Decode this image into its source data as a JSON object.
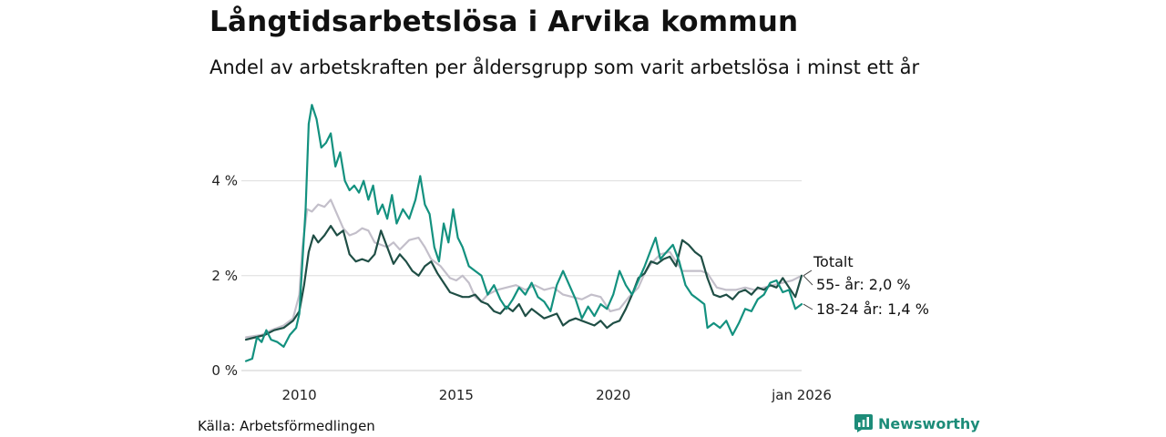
{
  "title": "Långtidsarbetslösa i Arvika kommun",
  "subtitle": "Andel av arbetskraften per åldersgrupp som varit arbetslösa i minst ett år",
  "source": "Källa: Arbetsförmedlingen",
  "brand": {
    "name": "Newsworthy",
    "icon": "bar-chart-logo-icon"
  },
  "colors": {
    "total": "#c3bfca",
    "age_55": "#1f4e45",
    "age_18_24": "#13917f",
    "grid": "#dddddd"
  },
  "chart_data": {
    "type": "line",
    "title": "Långtidsarbetslösa i Arvika kommun",
    "subtitle": "Andel av arbetskraften per åldersgrupp som varit arbetslösa i minst ett år",
    "x_range": [
      2008.3,
      2026.0
    ],
    "ylim": [
      0,
      5.7
    ],
    "y_ticks": [
      0,
      2,
      4
    ],
    "y_tick_labels": [
      "0 %",
      "2 %",
      "4 %"
    ],
    "x_ticks": [
      2010,
      2015,
      2020,
      2026.0
    ],
    "x_tick_labels": [
      "2010",
      "2015",
      "2020",
      "jan 2026"
    ],
    "grid": true,
    "series": [
      {
        "name": "Totalt",
        "label": "Totalt",
        "color": "#c3bfca",
        "points": [
          [
            2008.3,
            0.7
          ],
          [
            2008.8,
            0.75
          ],
          [
            2009.1,
            0.85
          ],
          [
            2009.5,
            0.95
          ],
          [
            2009.8,
            1.1
          ],
          [
            2010.0,
            1.6
          ],
          [
            2010.1,
            2.6
          ],
          [
            2010.25,
            3.4
          ],
          [
            2010.4,
            3.35
          ],
          [
            2010.6,
            3.5
          ],
          [
            2010.8,
            3.45
          ],
          [
            2011.0,
            3.6
          ],
          [
            2011.2,
            3.3
          ],
          [
            2011.4,
            3.0
          ],
          [
            2011.6,
            2.85
          ],
          [
            2011.8,
            2.9
          ],
          [
            2012.0,
            3.0
          ],
          [
            2012.2,
            2.95
          ],
          [
            2012.4,
            2.7
          ],
          [
            2012.6,
            2.65
          ],
          [
            2012.8,
            2.6
          ],
          [
            2013.0,
            2.7
          ],
          [
            2013.2,
            2.55
          ],
          [
            2013.5,
            2.75
          ],
          [
            2013.8,
            2.8
          ],
          [
            2014.0,
            2.6
          ],
          [
            2014.2,
            2.35
          ],
          [
            2014.5,
            2.2
          ],
          [
            2014.8,
            1.95
          ],
          [
            2015.0,
            1.9
          ],
          [
            2015.2,
            2.0
          ],
          [
            2015.4,
            1.85
          ],
          [
            2015.6,
            1.55
          ],
          [
            2015.8,
            1.45
          ],
          [
            2016.0,
            1.6
          ],
          [
            2016.3,
            1.7
          ],
          [
            2016.6,
            1.75
          ],
          [
            2016.9,
            1.8
          ],
          [
            2017.2,
            1.7
          ],
          [
            2017.5,
            1.8
          ],
          [
            2017.8,
            1.7
          ],
          [
            2018.1,
            1.75
          ],
          [
            2018.4,
            1.6
          ],
          [
            2018.7,
            1.55
          ],
          [
            2019.0,
            1.5
          ],
          [
            2019.3,
            1.6
          ],
          [
            2019.6,
            1.55
          ],
          [
            2019.9,
            1.25
          ],
          [
            2020.2,
            1.3
          ],
          [
            2020.5,
            1.55
          ],
          [
            2020.8,
            1.75
          ],
          [
            2021.0,
            2.05
          ],
          [
            2021.2,
            2.25
          ],
          [
            2021.5,
            2.45
          ],
          [
            2021.8,
            2.5
          ],
          [
            2022.0,
            2.3
          ],
          [
            2022.2,
            2.1
          ],
          [
            2022.5,
            2.1
          ],
          [
            2022.8,
            2.1
          ],
          [
            2023.0,
            2.05
          ],
          [
            2023.3,
            1.75
          ],
          [
            2023.6,
            1.7
          ],
          [
            2023.9,
            1.7
          ],
          [
            2024.2,
            1.75
          ],
          [
            2024.5,
            1.7
          ],
          [
            2024.8,
            1.75
          ],
          [
            2025.1,
            1.8
          ],
          [
            2025.4,
            1.85
          ],
          [
            2025.7,
            1.9
          ],
          [
            2026.0,
            2.0
          ]
        ]
      },
      {
        "name": "55- år",
        "label": "55- år: 2,0 %",
        "color": "#1f4e45",
        "points": [
          [
            2008.3,
            0.65
          ],
          [
            2008.6,
            0.7
          ],
          [
            2008.9,
            0.75
          ],
          [
            2009.2,
            0.85
          ],
          [
            2009.5,
            0.9
          ],
          [
            2009.8,
            1.05
          ],
          [
            2010.0,
            1.25
          ],
          [
            2010.15,
            1.8
          ],
          [
            2010.3,
            2.5
          ],
          [
            2010.45,
            2.85
          ],
          [
            2010.6,
            2.7
          ],
          [
            2010.8,
            2.85
          ],
          [
            2011.0,
            3.05
          ],
          [
            2011.2,
            2.85
          ],
          [
            2011.4,
            2.95
          ],
          [
            2011.6,
            2.45
          ],
          [
            2011.8,
            2.3
          ],
          [
            2012.0,
            2.35
          ],
          [
            2012.2,
            2.3
          ],
          [
            2012.4,
            2.45
          ],
          [
            2012.6,
            2.95
          ],
          [
            2012.8,
            2.6
          ],
          [
            2013.0,
            2.25
          ],
          [
            2013.2,
            2.45
          ],
          [
            2013.4,
            2.3
          ],
          [
            2013.6,
            2.1
          ],
          [
            2013.8,
            2.0
          ],
          [
            2014.0,
            2.2
          ],
          [
            2014.2,
            2.3
          ],
          [
            2014.4,
            2.05
          ],
          [
            2014.6,
            1.85
          ],
          [
            2014.8,
            1.65
          ],
          [
            2015.0,
            1.6
          ],
          [
            2015.2,
            1.55
          ],
          [
            2015.4,
            1.55
          ],
          [
            2015.6,
            1.6
          ],
          [
            2015.8,
            1.45
          ],
          [
            2016.0,
            1.4
          ],
          [
            2016.2,
            1.25
          ],
          [
            2016.4,
            1.2
          ],
          [
            2016.6,
            1.35
          ],
          [
            2016.8,
            1.25
          ],
          [
            2017.0,
            1.4
          ],
          [
            2017.2,
            1.15
          ],
          [
            2017.4,
            1.3
          ],
          [
            2017.6,
            1.2
          ],
          [
            2017.8,
            1.1
          ],
          [
            2018.0,
            1.15
          ],
          [
            2018.2,
            1.2
          ],
          [
            2018.4,
            0.95
          ],
          [
            2018.6,
            1.05
          ],
          [
            2018.8,
            1.1
          ],
          [
            2019.0,
            1.05
          ],
          [
            2019.2,
            1.0
          ],
          [
            2019.4,
            0.95
          ],
          [
            2019.6,
            1.05
          ],
          [
            2019.8,
            0.9
          ],
          [
            2020.0,
            1.0
          ],
          [
            2020.2,
            1.05
          ],
          [
            2020.4,
            1.3
          ],
          [
            2020.6,
            1.6
          ],
          [
            2020.8,
            1.95
          ],
          [
            2021.0,
            2.05
          ],
          [
            2021.2,
            2.3
          ],
          [
            2021.4,
            2.25
          ],
          [
            2021.6,
            2.35
          ],
          [
            2021.8,
            2.4
          ],
          [
            2022.0,
            2.2
          ],
          [
            2022.2,
            2.75
          ],
          [
            2022.4,
            2.65
          ],
          [
            2022.6,
            2.5
          ],
          [
            2022.8,
            2.4
          ],
          [
            2023.0,
            1.95
          ],
          [
            2023.2,
            1.6
          ],
          [
            2023.4,
            1.55
          ],
          [
            2023.6,
            1.6
          ],
          [
            2023.8,
            1.5
          ],
          [
            2024.0,
            1.65
          ],
          [
            2024.2,
            1.7
          ],
          [
            2024.4,
            1.6
          ],
          [
            2024.6,
            1.75
          ],
          [
            2024.8,
            1.7
          ],
          [
            2025.0,
            1.8
          ],
          [
            2025.2,
            1.75
          ],
          [
            2025.4,
            1.95
          ],
          [
            2025.6,
            1.75
          ],
          [
            2025.8,
            1.55
          ],
          [
            2026.0,
            2.0
          ]
        ]
      },
      {
        "name": "18-24 år",
        "label": "18-24 år: 1,4 %",
        "color": "#13917f",
        "points": [
          [
            2008.3,
            0.2
          ],
          [
            2008.5,
            0.25
          ],
          [
            2008.65,
            0.7
          ],
          [
            2008.8,
            0.6
          ],
          [
            2008.95,
            0.85
          ],
          [
            2009.1,
            0.65
          ],
          [
            2009.3,
            0.6
          ],
          [
            2009.5,
            0.5
          ],
          [
            2009.7,
            0.75
          ],
          [
            2009.9,
            0.9
          ],
          [
            2010.0,
            1.2
          ],
          [
            2010.1,
            2.3
          ],
          [
            2010.2,
            3.4
          ],
          [
            2010.3,
            5.2
          ],
          [
            2010.4,
            5.6
          ],
          [
            2010.55,
            5.3
          ],
          [
            2010.7,
            4.7
          ],
          [
            2010.85,
            4.8
          ],
          [
            2011.0,
            5.0
          ],
          [
            2011.15,
            4.3
          ],
          [
            2011.3,
            4.6
          ],
          [
            2011.45,
            4.0
          ],
          [
            2011.6,
            3.8
          ],
          [
            2011.75,
            3.9
          ],
          [
            2011.9,
            3.75
          ],
          [
            2012.05,
            4.0
          ],
          [
            2012.2,
            3.6
          ],
          [
            2012.35,
            3.9
          ],
          [
            2012.5,
            3.3
          ],
          [
            2012.65,
            3.5
          ],
          [
            2012.8,
            3.2
          ],
          [
            2012.95,
            3.7
          ],
          [
            2013.1,
            3.1
          ],
          [
            2013.3,
            3.4
          ],
          [
            2013.5,
            3.2
          ],
          [
            2013.7,
            3.6
          ],
          [
            2013.85,
            4.1
          ],
          [
            2014.0,
            3.5
          ],
          [
            2014.15,
            3.3
          ],
          [
            2014.3,
            2.6
          ],
          [
            2014.45,
            2.3
          ],
          [
            2014.6,
            3.1
          ],
          [
            2014.75,
            2.7
          ],
          [
            2014.9,
            3.4
          ],
          [
            2015.05,
            2.8
          ],
          [
            2015.2,
            2.6
          ],
          [
            2015.4,
            2.2
          ],
          [
            2015.6,
            2.1
          ],
          [
            2015.8,
            2.0
          ],
          [
            2016.0,
            1.6
          ],
          [
            2016.2,
            1.8
          ],
          [
            2016.4,
            1.5
          ],
          [
            2016.6,
            1.3
          ],
          [
            2016.8,
            1.5
          ],
          [
            2017.0,
            1.75
          ],
          [
            2017.2,
            1.6
          ],
          [
            2017.4,
            1.85
          ],
          [
            2017.6,
            1.55
          ],
          [
            2017.8,
            1.45
          ],
          [
            2018.0,
            1.25
          ],
          [
            2018.2,
            1.8
          ],
          [
            2018.4,
            2.1
          ],
          [
            2018.6,
            1.8
          ],
          [
            2018.8,
            1.5
          ],
          [
            2019.0,
            1.1
          ],
          [
            2019.2,
            1.35
          ],
          [
            2019.4,
            1.15
          ],
          [
            2019.6,
            1.4
          ],
          [
            2019.8,
            1.3
          ],
          [
            2020.0,
            1.6
          ],
          [
            2020.2,
            2.1
          ],
          [
            2020.4,
            1.8
          ],
          [
            2020.6,
            1.6
          ],
          [
            2020.8,
            1.9
          ],
          [
            2021.0,
            2.2
          ],
          [
            2021.2,
            2.55
          ],
          [
            2021.35,
            2.8
          ],
          [
            2021.5,
            2.35
          ],
          [
            2021.7,
            2.5
          ],
          [
            2021.9,
            2.65
          ],
          [
            2022.1,
            2.3
          ],
          [
            2022.3,
            1.8
          ],
          [
            2022.5,
            1.6
          ],
          [
            2022.7,
            1.5
          ],
          [
            2022.9,
            1.4
          ],
          [
            2023.0,
            0.9
          ],
          [
            2023.2,
            1.0
          ],
          [
            2023.4,
            0.9
          ],
          [
            2023.6,
            1.05
          ],
          [
            2023.8,
            0.75
          ],
          [
            2024.0,
            1.0
          ],
          [
            2024.2,
            1.3
          ],
          [
            2024.4,
            1.25
          ],
          [
            2024.6,
            1.5
          ],
          [
            2024.8,
            1.6
          ],
          [
            2025.0,
            1.85
          ],
          [
            2025.2,
            1.9
          ],
          [
            2025.4,
            1.65
          ],
          [
            2025.6,
            1.7
          ],
          [
            2025.8,
            1.3
          ],
          [
            2026.0,
            1.4
          ]
        ]
      }
    ]
  }
}
